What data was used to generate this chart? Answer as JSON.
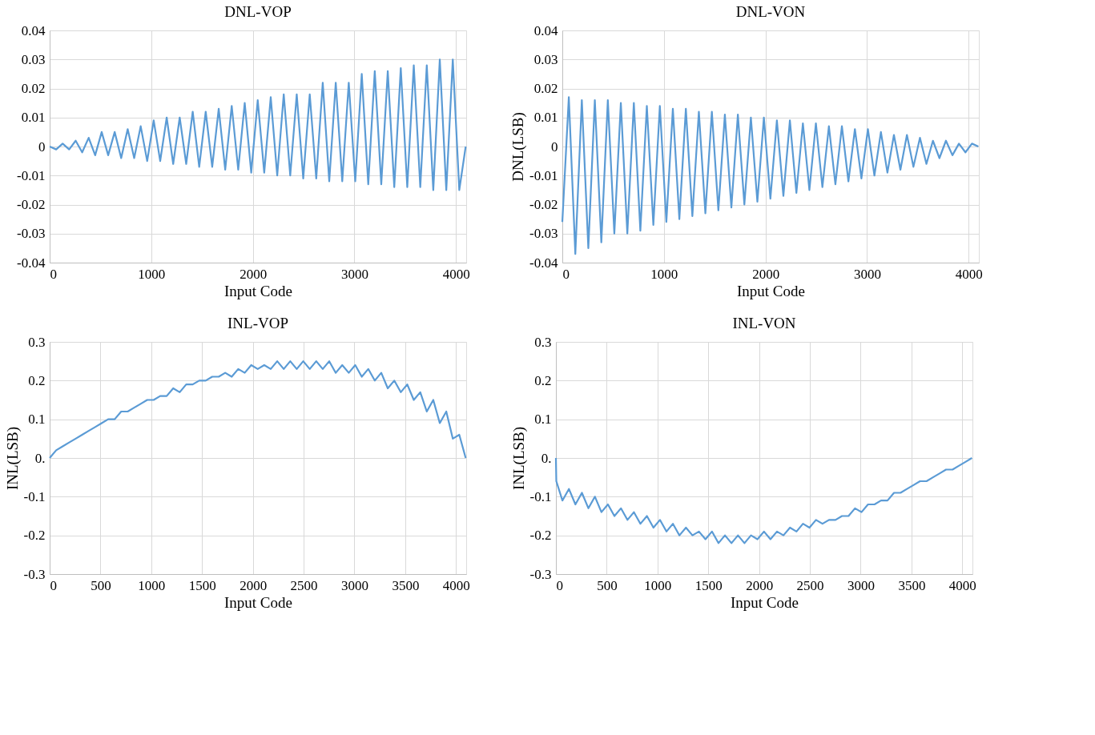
{
  "chart_data": [
    {
      "type": "line",
      "title": "DNL-VOP",
      "xlabel": "Input Code",
      "grid": true,
      "xlim": [
        0,
        4100
      ],
      "xticks": [
        0,
        1000,
        2000,
        3000,
        4000
      ],
      "ylim": [
        -0.04,
        0.04
      ],
      "yticks": [
        -0.04,
        -0.03,
        -0.02,
        -0.01,
        0,
        0.01,
        0.02,
        0.03,
        0.04
      ],
      "x": [
        0,
        64,
        128,
        192,
        256,
        320,
        384,
        448,
        512,
        576,
        640,
        704,
        768,
        832,
        896,
        960,
        1024,
        1088,
        1152,
        1216,
        1280,
        1344,
        1408,
        1472,
        1536,
        1600,
        1664,
        1728,
        1792,
        1856,
        1920,
        1984,
        2048,
        2112,
        2176,
        2240,
        2304,
        2368,
        2432,
        2496,
        2560,
        2624,
        2688,
        2752,
        2816,
        2880,
        2944,
        3008,
        3072,
        3136,
        3200,
        3264,
        3328,
        3392,
        3456,
        3520,
        3584,
        3648,
        3712,
        3776,
        3840,
        3904,
        3968,
        4032,
        4095
      ],
      "series": [
        {
          "color": "#5b9bd5",
          "values": [
            0,
            -0.001,
            0.001,
            -0.001,
            0.002,
            -0.002,
            0.003,
            -0.003,
            0.005,
            -0.003,
            0.005,
            -0.004,
            0.006,
            -0.004,
            0.007,
            -0.005,
            0.009,
            -0.005,
            0.01,
            -0.006,
            0.01,
            -0.006,
            0.012,
            -0.007,
            0.012,
            -0.007,
            0.013,
            -0.008,
            0.014,
            -0.008,
            0.015,
            -0.009,
            0.016,
            -0.009,
            0.017,
            -0.01,
            0.018,
            -0.01,
            0.018,
            -0.011,
            0.018,
            -0.011,
            0.022,
            -0.012,
            0.022,
            -0.012,
            0.022,
            -0.012,
            0.025,
            -0.013,
            0.026,
            -0.013,
            0.026,
            -0.014,
            0.027,
            -0.014,
            0.028,
            -0.014,
            0.028,
            -0.015,
            0.03,
            -0.015,
            0.03,
            -0.015,
            0
          ]
        }
      ]
    },
    {
      "type": "line",
      "title": "DNL-VON",
      "xlabel": "Input Code",
      "ylabel": "DNL(LSB)",
      "grid": true,
      "xlim": [
        0,
        4100
      ],
      "xticks": [
        0,
        1000,
        2000,
        3000,
        4000
      ],
      "ylim": [
        -0.04,
        0.04
      ],
      "yticks": [
        -0.04,
        -0.03,
        -0.02,
        -0.01,
        0,
        0.01,
        0.02,
        0.03,
        0.04
      ],
      "x": [
        0,
        64,
        128,
        192,
        256,
        320,
        384,
        448,
        512,
        576,
        640,
        704,
        768,
        832,
        896,
        960,
        1024,
        1088,
        1152,
        1216,
        1280,
        1344,
        1408,
        1472,
        1536,
        1600,
        1664,
        1728,
        1792,
        1856,
        1920,
        1984,
        2048,
        2112,
        2176,
        2240,
        2304,
        2368,
        2432,
        2496,
        2560,
        2624,
        2688,
        2752,
        2816,
        2880,
        2944,
        3008,
        3072,
        3136,
        3200,
        3264,
        3328,
        3392,
        3456,
        3520,
        3584,
        3648,
        3712,
        3776,
        3840,
        3904,
        3968,
        4032,
        4095
      ],
      "series": [
        {
          "color": "#5b9bd5",
          "values": [
            -0.026,
            0.017,
            -0.037,
            0.016,
            -0.035,
            0.016,
            -0.033,
            0.016,
            -0.03,
            0.015,
            -0.03,
            0.015,
            -0.029,
            0.014,
            -0.027,
            0.014,
            -0.026,
            0.013,
            -0.025,
            0.013,
            -0.024,
            0.012,
            -0.023,
            0.012,
            -0.022,
            0.011,
            -0.021,
            0.011,
            -0.02,
            0.01,
            -0.019,
            0.01,
            -0.018,
            0.009,
            -0.017,
            0.009,
            -0.016,
            0.008,
            -0.015,
            0.008,
            -0.014,
            0.007,
            -0.013,
            0.007,
            -0.012,
            0.006,
            -0.011,
            0.006,
            -0.01,
            0.005,
            -0.009,
            0.004,
            -0.008,
            0.004,
            -0.007,
            0.003,
            -0.006,
            0.002,
            -0.004,
            0.002,
            -0.003,
            0.001,
            -0.002,
            0.001,
            0
          ]
        }
      ]
    },
    {
      "type": "line",
      "title": "INL-VOP",
      "xlabel": "Input Code",
      "ylabel": "INL(LSB)",
      "grid": true,
      "xlim": [
        0,
        4100
      ],
      "xticks": [
        0,
        500,
        1000,
        1500,
        2000,
        2500,
        3000,
        3500,
        4000
      ],
      "ylim": [
        -0.3,
        0.3
      ],
      "yticks": [
        -0.3,
        -0.2,
        -0.1,
        {
          "value": 0,
          "label": "0."
        },
        0.1,
        0.2,
        0.3
      ],
      "x": [
        0,
        64,
        128,
        192,
        256,
        320,
        384,
        448,
        512,
        576,
        640,
        704,
        768,
        832,
        896,
        960,
        1024,
        1088,
        1152,
        1216,
        1280,
        1344,
        1408,
        1472,
        1536,
        1600,
        1664,
        1728,
        1792,
        1856,
        1920,
        1984,
        2048,
        2112,
        2176,
        2240,
        2304,
        2368,
        2432,
        2496,
        2560,
        2624,
        2688,
        2752,
        2816,
        2880,
        2944,
        3008,
        3072,
        3136,
        3200,
        3264,
        3328,
        3392,
        3456,
        3520,
        3584,
        3648,
        3712,
        3776,
        3840,
        3904,
        3968,
        4032,
        4095
      ],
      "series": [
        {
          "color": "#5b9bd5",
          "values": [
            0,
            0.02,
            0.03,
            0.04,
            0.05,
            0.06,
            0.07,
            0.08,
            0.09,
            0.1,
            0.1,
            0.12,
            0.12,
            0.13,
            0.14,
            0.15,
            0.15,
            0.16,
            0.16,
            0.18,
            0.17,
            0.19,
            0.19,
            0.2,
            0.2,
            0.21,
            0.21,
            0.22,
            0.21,
            0.23,
            0.22,
            0.24,
            0.23,
            0.24,
            0.23,
            0.25,
            0.23,
            0.25,
            0.23,
            0.25,
            0.23,
            0.25,
            0.23,
            0.25,
            0.22,
            0.24,
            0.22,
            0.24,
            0.21,
            0.23,
            0.2,
            0.22,
            0.18,
            0.2,
            0.17,
            0.19,
            0.15,
            0.17,
            0.12,
            0.15,
            0.09,
            0.12,
            0.05,
            0.06,
            0
          ]
        }
      ]
    },
    {
      "type": "line",
      "title": "INL-VON",
      "xlabel": "Input Code",
      "ylabel": "INL(LSB)",
      "grid": true,
      "xlim": [
        0,
        4100
      ],
      "xticks": [
        0,
        500,
        1000,
        1500,
        2000,
        2500,
        3000,
        3500,
        4000
      ],
      "ylim": [
        -0.3,
        0.3
      ],
      "yticks": [
        -0.3,
        -0.2,
        -0.1,
        {
          "value": 0,
          "label": "0."
        },
        0.1,
        0.2,
        0.3
      ],
      "x": [
        0,
        4,
        64,
        128,
        192,
        256,
        320,
        384,
        448,
        512,
        576,
        640,
        704,
        768,
        832,
        896,
        960,
        1024,
        1088,
        1152,
        1216,
        1280,
        1344,
        1408,
        1472,
        1536,
        1600,
        1664,
        1728,
        1792,
        1856,
        1920,
        1984,
        2048,
        2112,
        2176,
        2240,
        2304,
        2368,
        2432,
        2496,
        2560,
        2624,
        2688,
        2752,
        2816,
        2880,
        2944,
        3008,
        3072,
        3136,
        3200,
        3264,
        3328,
        3392,
        3456,
        3520,
        3584,
        3648,
        3712,
        3776,
        3840,
        3904,
        3968,
        4032,
        4095
      ],
      "series": [
        {
          "color": "#5b9bd5",
          "values": [
            0,
            -0.06,
            -0.11,
            -0.08,
            -0.12,
            -0.09,
            -0.13,
            -0.1,
            -0.14,
            -0.12,
            -0.15,
            -0.13,
            -0.16,
            -0.14,
            -0.17,
            -0.15,
            -0.18,
            -0.16,
            -0.19,
            -0.17,
            -0.2,
            -0.18,
            -0.2,
            -0.19,
            -0.21,
            -0.19,
            -0.22,
            -0.2,
            -0.22,
            -0.2,
            -0.22,
            -0.2,
            -0.21,
            -0.19,
            -0.21,
            -0.19,
            -0.2,
            -0.18,
            -0.19,
            -0.17,
            -0.18,
            -0.16,
            -0.17,
            -0.16,
            -0.16,
            -0.15,
            -0.15,
            -0.13,
            -0.14,
            -0.12,
            -0.12,
            -0.11,
            -0.11,
            -0.09,
            -0.09,
            -0.08,
            -0.07,
            -0.06,
            -0.06,
            -0.05,
            -0.04,
            -0.03,
            -0.03,
            -0.02,
            -0.01,
            0
          ]
        }
      ]
    }
  ]
}
